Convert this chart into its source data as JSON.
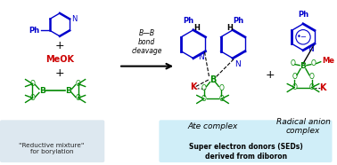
{
  "title": "Super electron donors derived from diboron",
  "bg_color": "#ffffff",
  "left_box_color": "#dde8f0",
  "right_box_color": "#d0eef8",
  "left_box_text": "\"Reductive mixture\"\nfor borylation",
  "right_box_text": "Super electron donors (SEDs)\nderived from diboron",
  "arrow_label_line1": "B—B",
  "arrow_label_line2": "bond",
  "arrow_label_line3": "cleavage",
  "ate_complex_label": "Ate complex",
  "radical_anion_label": "Radical anion\ncomplex",
  "meok_color": "#cc0000",
  "pyridine_color": "#0000cc",
  "boron_color": "#008800",
  "k_color": "#cc0000",
  "me_color": "#cc0000",
  "figsize": [
    3.78,
    1.86
  ],
  "dpi": 100
}
